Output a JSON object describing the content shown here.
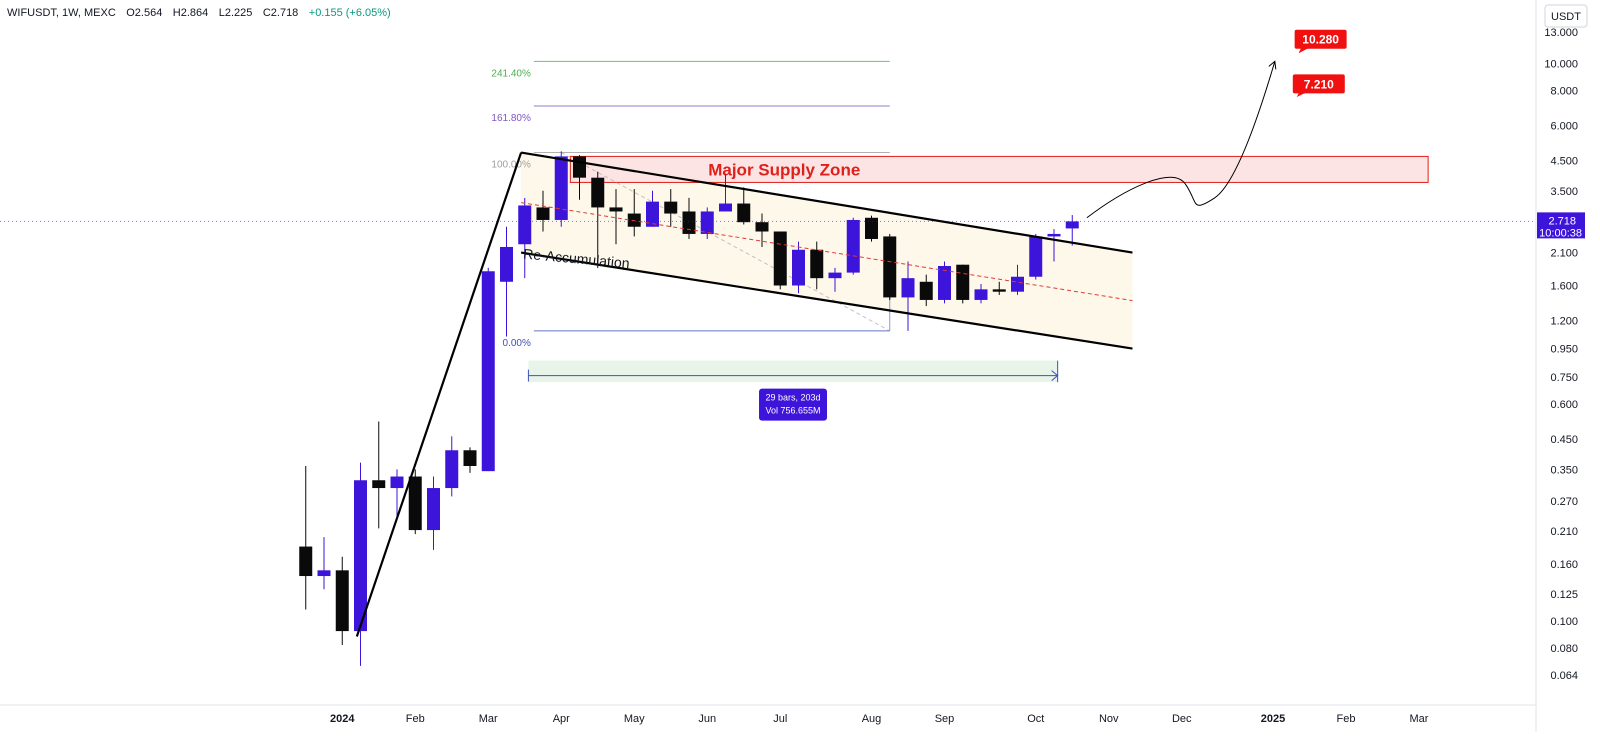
{
  "header": {
    "symbol": "WIFUSDT, 1W, MEXC",
    "open": "O2.564",
    "high": "H2.864",
    "low": "L2.225",
    "close": "C2.718",
    "change": "+0.155 (+6.05%)"
  },
  "colors": {
    "bull": "#3d14d9",
    "bear": "#0a0a0a",
    "supply_fill": "#fde4e4",
    "supply_border": "#e0201a",
    "channel_fill": "#fdf8ea",
    "target": "#f01010",
    "fib_241": "#4caf50",
    "fib_161": "#7e57c2",
    "fib_100": "#9e9e9e",
    "fib_0": "#3f51b5",
    "measure_fill": "#e8f4ea",
    "measure_line": "#3f51b5",
    "midline": "#e53935"
  },
  "chart_data": {
    "type": "candlestick",
    "title": "WIFUSDT, 1W, MEXC",
    "y_scale": "log",
    "y_unit": "USDT",
    "ylim": [
      0.058,
      14.5
    ],
    "y_ticks": [
      "13.000",
      "10.000",
      "8.000",
      "6.000",
      "4.500",
      "3.500",
      "2.718",
      "2.100",
      "1.600",
      "1.200",
      "0.950",
      "0.750",
      "0.600",
      "0.450",
      "0.350",
      "0.270",
      "0.210",
      "0.160",
      "0.125",
      "0.100",
      "0.080",
      "0.064"
    ],
    "y_tick_values": [
      13,
      10,
      8,
      6,
      4.5,
      3.5,
      2.718,
      2.1,
      1.6,
      1.2,
      0.95,
      0.75,
      0.6,
      0.45,
      0.35,
      0.27,
      0.21,
      0.16,
      0.125,
      0.1,
      0.08,
      0.064
    ],
    "x_ticks": [
      {
        "label": "2024",
        "week": 1,
        "bold": true
      },
      {
        "label": "Feb",
        "week": 5
      },
      {
        "label": "Mar",
        "week": 9
      },
      {
        "label": "Apr",
        "week": 13
      },
      {
        "label": "May",
        "week": 17
      },
      {
        "label": "Jun",
        "week": 21
      },
      {
        "label": "Jul",
        "week": 25
      },
      {
        "label": "Aug",
        "week": 30
      },
      {
        "label": "Sep",
        "week": 34
      },
      {
        "label": "Oct",
        "week": 39
      },
      {
        "label": "Nov",
        "week": 43
      },
      {
        "label": "Dec",
        "week": 47
      },
      {
        "label": "2025",
        "week": 52,
        "bold": true
      },
      {
        "label": "Feb",
        "week": 56
      },
      {
        "label": "Mar",
        "week": 60
      }
    ],
    "candles": [
      {
        "week": -1,
        "o": 0.185,
        "h": 0.36,
        "l": 0.11,
        "c": 0.145
      },
      {
        "week": 0,
        "o": 0.145,
        "h": 0.2,
        "l": 0.13,
        "c": 0.152
      },
      {
        "week": 1,
        "o": 0.152,
        "h": 0.17,
        "l": 0.082,
        "c": 0.092
      },
      {
        "week": 2,
        "o": 0.092,
        "h": 0.37,
        "l": 0.069,
        "c": 0.32
      },
      {
        "week": 3,
        "o": 0.32,
        "h": 0.52,
        "l": 0.215,
        "c": 0.3
      },
      {
        "week": 4,
        "o": 0.3,
        "h": 0.35,
        "l": 0.23,
        "c": 0.33
      },
      {
        "week": 5,
        "o": 0.33,
        "h": 0.35,
        "l": 0.205,
        "c": 0.212
      },
      {
        "week": 6,
        "o": 0.212,
        "h": 0.33,
        "l": 0.18,
        "c": 0.3
      },
      {
        "week": 7,
        "o": 0.3,
        "h": 0.46,
        "l": 0.28,
        "c": 0.41
      },
      {
        "week": 8,
        "o": 0.41,
        "h": 0.42,
        "l": 0.34,
        "c": 0.36
      },
      {
        "week": 9,
        "o": 0.345,
        "h": 1.85,
        "l": 0.345,
        "c": 1.8
      },
      {
        "week": 10,
        "o": 1.65,
        "h": 2.6,
        "l": 1.05,
        "c": 2.2
      },
      {
        "week": 11,
        "o": 2.25,
        "h": 3.3,
        "l": 1.7,
        "c": 3.1
      },
      {
        "week": 12,
        "o": 3.05,
        "h": 3.5,
        "l": 2.5,
        "c": 2.75
      },
      {
        "week": 13,
        "o": 2.75,
        "h": 4.85,
        "l": 2.6,
        "c": 4.65
      },
      {
        "week": 14,
        "o": 4.65,
        "h": 4.7,
        "l": 3.25,
        "c": 3.9
      },
      {
        "week": 15,
        "o": 3.9,
        "h": 4.1,
        "l": 1.85,
        "c": 3.05
      },
      {
        "week": 16,
        "o": 3.05,
        "h": 3.55,
        "l": 2.25,
        "c": 2.95
      },
      {
        "week": 17,
        "o": 2.9,
        "h": 3.55,
        "l": 2.4,
        "c": 2.6
      },
      {
        "week": 18,
        "o": 2.6,
        "h": 3.5,
        "l": 2.6,
        "c": 3.2
      },
      {
        "week": 19,
        "o": 3.2,
        "h": 3.55,
        "l": 2.6,
        "c": 2.9
      },
      {
        "week": 20,
        "o": 2.95,
        "h": 3.3,
        "l": 2.35,
        "c": 2.45
      },
      {
        "week": 21,
        "o": 2.45,
        "h": 3.05,
        "l": 2.35,
        "c": 2.95
      },
      {
        "week": 22,
        "o": 2.95,
        "h": 4.0,
        "l": 2.95,
        "c": 3.15
      },
      {
        "week": 23,
        "o": 3.15,
        "h": 3.6,
        "l": 2.65,
        "c": 2.7
      },
      {
        "week": 24,
        "o": 2.7,
        "h": 2.9,
        "l": 2.2,
        "c": 2.5
      },
      {
        "week": 25,
        "o": 2.5,
        "h": 2.5,
        "l": 1.55,
        "c": 1.6
      },
      {
        "week": 26,
        "o": 1.6,
        "h": 2.3,
        "l": 1.5,
        "c": 2.15
      },
      {
        "week": 27,
        "o": 2.15,
        "h": 2.3,
        "l": 1.55,
        "c": 1.7
      },
      {
        "week": 28,
        "o": 1.7,
        "h": 1.85,
        "l": 1.52,
        "c": 1.78
      },
      {
        "week": 29,
        "o": 1.78,
        "h": 2.8,
        "l": 1.75,
        "c": 2.75
      },
      {
        "week": 30,
        "o": 2.8,
        "h": 2.85,
        "l": 2.3,
        "c": 2.35
      },
      {
        "week": 31,
        "o": 2.4,
        "h": 2.45,
        "l": 1.42,
        "c": 1.45
      },
      {
        "week": 32,
        "o": 1.45,
        "h": 1.95,
        "l": 1.1,
        "c": 1.7
      },
      {
        "week": 33,
        "o": 1.65,
        "h": 1.75,
        "l": 1.35,
        "c": 1.42
      },
      {
        "week": 34,
        "o": 1.42,
        "h": 1.95,
        "l": 1.38,
        "c": 1.88
      },
      {
        "week": 35,
        "o": 1.9,
        "h": 1.9,
        "l": 1.38,
        "c": 1.42
      },
      {
        "week": 36,
        "o": 1.42,
        "h": 1.62,
        "l": 1.38,
        "c": 1.55
      },
      {
        "week": 37,
        "o": 1.55,
        "h": 1.65,
        "l": 1.48,
        "c": 1.52
      },
      {
        "week": 38,
        "o": 1.52,
        "h": 1.9,
        "l": 1.48,
        "c": 1.72
      },
      {
        "week": 39,
        "o": 1.72,
        "h": 2.45,
        "l": 1.68,
        "c": 2.4
      },
      {
        "week": 40,
        "o": 2.4,
        "h": 2.55,
        "l": 1.95,
        "c": 2.45
      },
      {
        "week": 41,
        "o": 2.564,
        "h": 2.864,
        "l": 2.225,
        "c": 2.718
      }
    ],
    "annotations": {
      "supply_zone": {
        "label": "Major Supply Zone",
        "top": 4.65,
        "bottom": 3.75,
        "from_week": 13.5,
        "to_week": 60.5
      },
      "pattern_label": "Re-Accumulation",
      "fib_levels": [
        {
          "label": "241.40%",
          "price": 10.2
        },
        {
          "label": "161.80%",
          "price": 7.05
        },
        {
          "label": "100.00%",
          "price": 4.8
        },
        {
          "label": "0.00%",
          "price": 1.1
        }
      ],
      "measure": {
        "line1": "29 bars, 203d",
        "line2": "Vol 756.655M"
      },
      "targets": [
        "10.280",
        "7.210"
      ],
      "last_price": {
        "value": "2.718",
        "countdown": "10:00:38"
      }
    }
  }
}
